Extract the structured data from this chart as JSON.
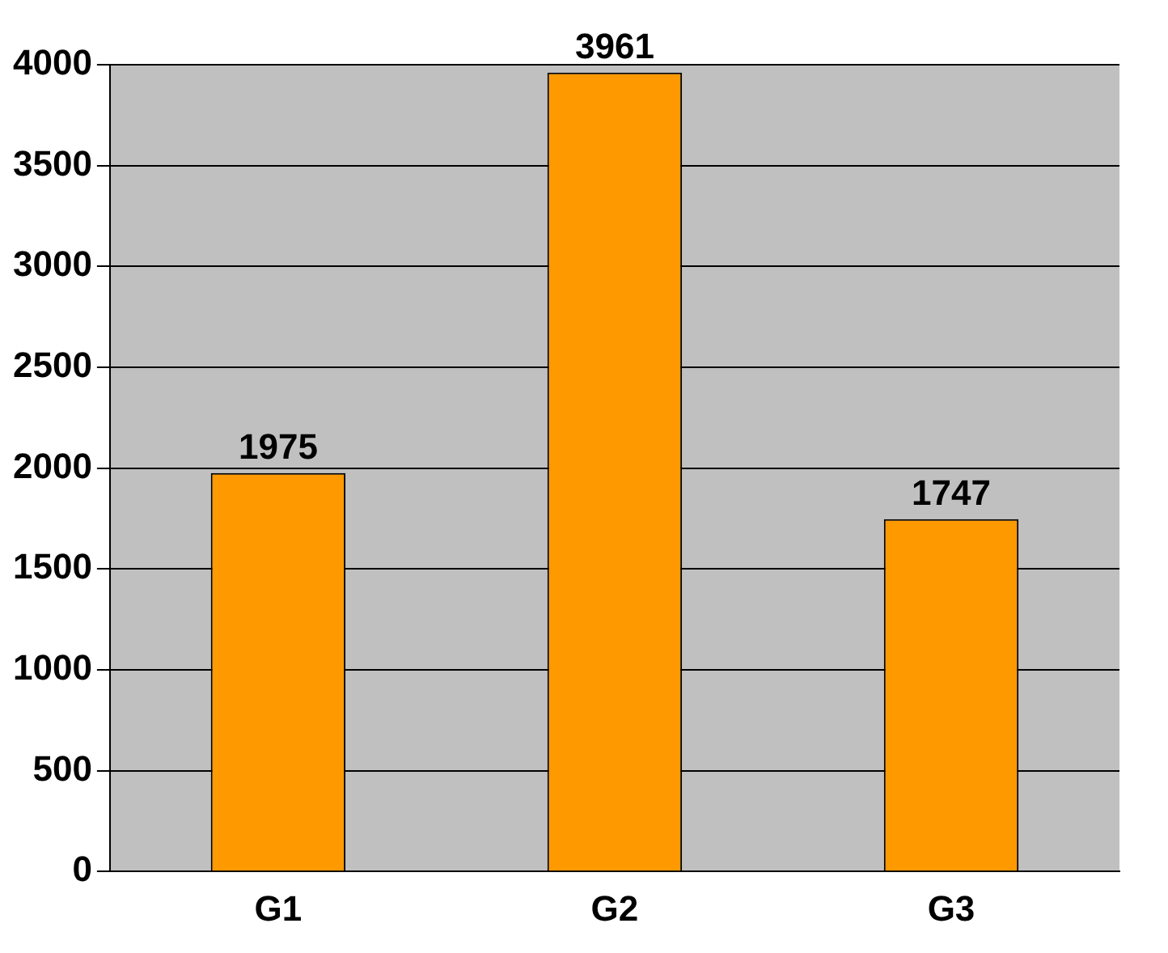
{
  "chart_data": {
    "type": "bar",
    "categories": [
      "G1",
      "G2",
      "G3"
    ],
    "values": [
      1975,
      3961,
      1747
    ],
    "color": "#ff9900",
    "ylim": [
      0,
      4000
    ],
    "yticks": [
      0,
      500,
      1000,
      1500,
      2000,
      2500,
      3000,
      3500,
      4000
    ],
    "grid": "y",
    "data_labels": true,
    "legend": false
  }
}
